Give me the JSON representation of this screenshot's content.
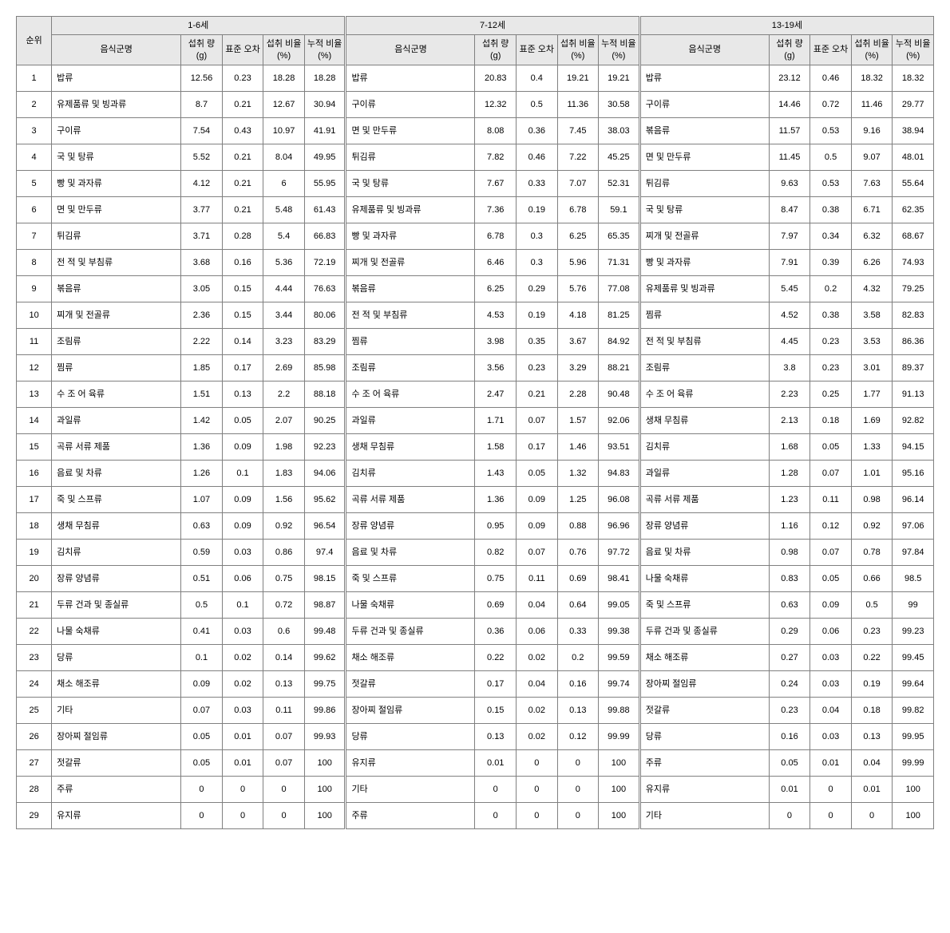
{
  "headers": {
    "rank": "순위",
    "groups": [
      "1-6세",
      "7-12세",
      "13-19세"
    ],
    "cols": {
      "name": "음식군명",
      "intake": "섭취\n량\n(g)",
      "sd": "표준\n오차",
      "ratio": "섭취\n비율\n(%)",
      "cum": "누적\n비율\n(%)"
    }
  },
  "rows": [
    {
      "rank": 1,
      "g1": {
        "name": "밥류",
        "intake": "12.56",
        "sd": "0.23",
        "ratio": "18.28",
        "cum": "18.28"
      },
      "g2": {
        "name": "밥류",
        "intake": "20.83",
        "sd": "0.4",
        "ratio": "19.21",
        "cum": "19.21"
      },
      "g3": {
        "name": "밥류",
        "intake": "23.12",
        "sd": "0.46",
        "ratio": "18.32",
        "cum": "18.32"
      }
    },
    {
      "rank": 2,
      "g1": {
        "name": "유제품류 및 빙과류",
        "intake": "8.7",
        "sd": "0.21",
        "ratio": "12.67",
        "cum": "30.94"
      },
      "g2": {
        "name": "구이류",
        "intake": "12.32",
        "sd": "0.5",
        "ratio": "11.36",
        "cum": "30.58"
      },
      "g3": {
        "name": "구이류",
        "intake": "14.46",
        "sd": "0.72",
        "ratio": "11.46",
        "cum": "29.77"
      }
    },
    {
      "rank": 3,
      "g1": {
        "name": "구이류",
        "intake": "7.54",
        "sd": "0.43",
        "ratio": "10.97",
        "cum": "41.91"
      },
      "g2": {
        "name": "면 및 만두류",
        "intake": "8.08",
        "sd": "0.36",
        "ratio": "7.45",
        "cum": "38.03"
      },
      "g3": {
        "name": "볶음류",
        "intake": "11.57",
        "sd": "0.53",
        "ratio": "9.16",
        "cum": "38.94"
      }
    },
    {
      "rank": 4,
      "g1": {
        "name": "국 및 탕류",
        "intake": "5.52",
        "sd": "0.21",
        "ratio": "8.04",
        "cum": "49.95"
      },
      "g2": {
        "name": "튀김류",
        "intake": "7.82",
        "sd": "0.46",
        "ratio": "7.22",
        "cum": "45.25"
      },
      "g3": {
        "name": "면 및 만두류",
        "intake": "11.45",
        "sd": "0.5",
        "ratio": "9.07",
        "cum": "48.01"
      }
    },
    {
      "rank": 5,
      "g1": {
        "name": "빵 및 과자류",
        "intake": "4.12",
        "sd": "0.21",
        "ratio": "6",
        "cum": "55.95"
      },
      "g2": {
        "name": "국 및 탕류",
        "intake": "7.67",
        "sd": "0.33",
        "ratio": "7.07",
        "cum": "52.31"
      },
      "g3": {
        "name": "튀김류",
        "intake": "9.63",
        "sd": "0.53",
        "ratio": "7.63",
        "cum": "55.64"
      }
    },
    {
      "rank": 6,
      "g1": {
        "name": "면 및 만두류",
        "intake": "3.77",
        "sd": "0.21",
        "ratio": "5.48",
        "cum": "61.43"
      },
      "g2": {
        "name": "유제품류 및 빙과류",
        "intake": "7.36",
        "sd": "0.19",
        "ratio": "6.78",
        "cum": "59.1"
      },
      "g3": {
        "name": "국 및 탕류",
        "intake": "8.47",
        "sd": "0.38",
        "ratio": "6.71",
        "cum": "62.35"
      }
    },
    {
      "rank": 7,
      "g1": {
        "name": "튀김류",
        "intake": "3.71",
        "sd": "0.28",
        "ratio": "5.4",
        "cum": "66.83"
      },
      "g2": {
        "name": "빵 및 과자류",
        "intake": "6.78",
        "sd": "0.3",
        "ratio": "6.25",
        "cum": "65.35"
      },
      "g3": {
        "name": "찌개 및 전골류",
        "intake": "7.97",
        "sd": "0.34",
        "ratio": "6.32",
        "cum": "68.67"
      }
    },
    {
      "rank": 8,
      "g1": {
        "name": "전 적 및 부침류",
        "intake": "3.68",
        "sd": "0.16",
        "ratio": "5.36",
        "cum": "72.19"
      },
      "g2": {
        "name": "찌개 및 전골류",
        "intake": "6.46",
        "sd": "0.3",
        "ratio": "5.96",
        "cum": "71.31"
      },
      "g3": {
        "name": "빵 및 과자류",
        "intake": "7.91",
        "sd": "0.39",
        "ratio": "6.26",
        "cum": "74.93"
      }
    },
    {
      "rank": 9,
      "g1": {
        "name": "볶음류",
        "intake": "3.05",
        "sd": "0.15",
        "ratio": "4.44",
        "cum": "76.63"
      },
      "g2": {
        "name": "볶음류",
        "intake": "6.25",
        "sd": "0.29",
        "ratio": "5.76",
        "cum": "77.08"
      },
      "g3": {
        "name": "유제품류 및 빙과류",
        "intake": "5.45",
        "sd": "0.2",
        "ratio": "4.32",
        "cum": "79.25"
      }
    },
    {
      "rank": 10,
      "g1": {
        "name": "찌개 및 전골류",
        "intake": "2.36",
        "sd": "0.15",
        "ratio": "3.44",
        "cum": "80.06"
      },
      "g2": {
        "name": "전 적 및 부침류",
        "intake": "4.53",
        "sd": "0.19",
        "ratio": "4.18",
        "cum": "81.25"
      },
      "g3": {
        "name": "찜류",
        "intake": "4.52",
        "sd": "0.38",
        "ratio": "3.58",
        "cum": "82.83"
      }
    },
    {
      "rank": 11,
      "g1": {
        "name": "조림류",
        "intake": "2.22",
        "sd": "0.14",
        "ratio": "3.23",
        "cum": "83.29"
      },
      "g2": {
        "name": "찜류",
        "intake": "3.98",
        "sd": "0.35",
        "ratio": "3.67",
        "cum": "84.92"
      },
      "g3": {
        "name": "전 적 및 부침류",
        "intake": "4.45",
        "sd": "0.23",
        "ratio": "3.53",
        "cum": "86.36"
      }
    },
    {
      "rank": 12,
      "g1": {
        "name": "찜류",
        "intake": "1.85",
        "sd": "0.17",
        "ratio": "2.69",
        "cum": "85.98"
      },
      "g2": {
        "name": "조림류",
        "intake": "3.56",
        "sd": "0.23",
        "ratio": "3.29",
        "cum": "88.21"
      },
      "g3": {
        "name": "조림류",
        "intake": "3.8",
        "sd": "0.23",
        "ratio": "3.01",
        "cum": "89.37"
      }
    },
    {
      "rank": 13,
      "g1": {
        "name": "수 조 어 육류",
        "intake": "1.51",
        "sd": "0.13",
        "ratio": "2.2",
        "cum": "88.18"
      },
      "g2": {
        "name": "수 조 어 육류",
        "intake": "2.47",
        "sd": "0.21",
        "ratio": "2.28",
        "cum": "90.48"
      },
      "g3": {
        "name": "수 조 어 육류",
        "intake": "2.23",
        "sd": "0.25",
        "ratio": "1.77",
        "cum": "91.13"
      }
    },
    {
      "rank": 14,
      "g1": {
        "name": "과일류",
        "intake": "1.42",
        "sd": "0.05",
        "ratio": "2.07",
        "cum": "90.25"
      },
      "g2": {
        "name": "과일류",
        "intake": "1.71",
        "sd": "0.07",
        "ratio": "1.57",
        "cum": "92.06"
      },
      "g3": {
        "name": "생채 무침류",
        "intake": "2.13",
        "sd": "0.18",
        "ratio": "1.69",
        "cum": "92.82"
      }
    },
    {
      "rank": 15,
      "g1": {
        "name": "곡류 서류 제품",
        "intake": "1.36",
        "sd": "0.09",
        "ratio": "1.98",
        "cum": "92.23"
      },
      "g2": {
        "name": "생채 무침류",
        "intake": "1.58",
        "sd": "0.17",
        "ratio": "1.46",
        "cum": "93.51"
      },
      "g3": {
        "name": "김치류",
        "intake": "1.68",
        "sd": "0.05",
        "ratio": "1.33",
        "cum": "94.15"
      }
    },
    {
      "rank": 16,
      "g1": {
        "name": "음료 및 차류",
        "intake": "1.26",
        "sd": "0.1",
        "ratio": "1.83",
        "cum": "94.06"
      },
      "g2": {
        "name": "김치류",
        "intake": "1.43",
        "sd": "0.05",
        "ratio": "1.32",
        "cum": "94.83"
      },
      "g3": {
        "name": "과일류",
        "intake": "1.28",
        "sd": "0.07",
        "ratio": "1.01",
        "cum": "95.16"
      }
    },
    {
      "rank": 17,
      "g1": {
        "name": "죽 및 스프류",
        "intake": "1.07",
        "sd": "0.09",
        "ratio": "1.56",
        "cum": "95.62"
      },
      "g2": {
        "name": "곡류 서류 제품",
        "intake": "1.36",
        "sd": "0.09",
        "ratio": "1.25",
        "cum": "96.08"
      },
      "g3": {
        "name": "곡류 서류 제품",
        "intake": "1.23",
        "sd": "0.11",
        "ratio": "0.98",
        "cum": "96.14"
      }
    },
    {
      "rank": 18,
      "g1": {
        "name": "생채 무침류",
        "intake": "0.63",
        "sd": "0.09",
        "ratio": "0.92",
        "cum": "96.54"
      },
      "g2": {
        "name": "장류 양념류",
        "intake": "0.95",
        "sd": "0.09",
        "ratio": "0.88",
        "cum": "96.96"
      },
      "g3": {
        "name": "장류 양념류",
        "intake": "1.16",
        "sd": "0.12",
        "ratio": "0.92",
        "cum": "97.06"
      }
    },
    {
      "rank": 19,
      "g1": {
        "name": "김치류",
        "intake": "0.59",
        "sd": "0.03",
        "ratio": "0.86",
        "cum": "97.4"
      },
      "g2": {
        "name": "음료 및 차류",
        "intake": "0.82",
        "sd": "0.07",
        "ratio": "0.76",
        "cum": "97.72"
      },
      "g3": {
        "name": "음료 및 차류",
        "intake": "0.98",
        "sd": "0.07",
        "ratio": "0.78",
        "cum": "97.84"
      }
    },
    {
      "rank": 20,
      "g1": {
        "name": "장류 양념류",
        "intake": "0.51",
        "sd": "0.06",
        "ratio": "0.75",
        "cum": "98.15"
      },
      "g2": {
        "name": "죽 및 스프류",
        "intake": "0.75",
        "sd": "0.11",
        "ratio": "0.69",
        "cum": "98.41"
      },
      "g3": {
        "name": "나물 숙채류",
        "intake": "0.83",
        "sd": "0.05",
        "ratio": "0.66",
        "cum": "98.5"
      }
    },
    {
      "rank": 21,
      "g1": {
        "name": "두류 건과 및 종실류",
        "intake": "0.5",
        "sd": "0.1",
        "ratio": "0.72",
        "cum": "98.87"
      },
      "g2": {
        "name": "나물 숙채류",
        "intake": "0.69",
        "sd": "0.04",
        "ratio": "0.64",
        "cum": "99.05"
      },
      "g3": {
        "name": "죽 및 스프류",
        "intake": "0.63",
        "sd": "0.09",
        "ratio": "0.5",
        "cum": "99"
      }
    },
    {
      "rank": 22,
      "g1": {
        "name": "나물 숙채류",
        "intake": "0.41",
        "sd": "0.03",
        "ratio": "0.6",
        "cum": "99.48"
      },
      "g2": {
        "name": "두류 건과 및 종실류",
        "intake": "0.36",
        "sd": "0.06",
        "ratio": "0.33",
        "cum": "99.38"
      },
      "g3": {
        "name": "두류 건과 및 종실류",
        "intake": "0.29",
        "sd": "0.06",
        "ratio": "0.23",
        "cum": "99.23"
      }
    },
    {
      "rank": 23,
      "g1": {
        "name": "당류",
        "intake": "0.1",
        "sd": "0.02",
        "ratio": "0.14",
        "cum": "99.62"
      },
      "g2": {
        "name": "채소 해조류",
        "intake": "0.22",
        "sd": "0.02",
        "ratio": "0.2",
        "cum": "99.59"
      },
      "g3": {
        "name": "채소 해조류",
        "intake": "0.27",
        "sd": "0.03",
        "ratio": "0.22",
        "cum": "99.45"
      }
    },
    {
      "rank": 24,
      "g1": {
        "name": "채소 해조류",
        "intake": "0.09",
        "sd": "0.02",
        "ratio": "0.13",
        "cum": "99.75"
      },
      "g2": {
        "name": "젓갈류",
        "intake": "0.17",
        "sd": "0.04",
        "ratio": "0.16",
        "cum": "99.74"
      },
      "g3": {
        "name": "장아찌 절임류",
        "intake": "0.24",
        "sd": "0.03",
        "ratio": "0.19",
        "cum": "99.64"
      }
    },
    {
      "rank": 25,
      "g1": {
        "name": "기타",
        "intake": "0.07",
        "sd": "0.03",
        "ratio": "0.11",
        "cum": "99.86"
      },
      "g2": {
        "name": "장아찌 절임류",
        "intake": "0.15",
        "sd": "0.02",
        "ratio": "0.13",
        "cum": "99.88"
      },
      "g3": {
        "name": "젓갈류",
        "intake": "0.23",
        "sd": "0.04",
        "ratio": "0.18",
        "cum": "99.82"
      }
    },
    {
      "rank": 26,
      "g1": {
        "name": "장아찌 절임류",
        "intake": "0.05",
        "sd": "0.01",
        "ratio": "0.07",
        "cum": "99.93"
      },
      "g2": {
        "name": "당류",
        "intake": "0.13",
        "sd": "0.02",
        "ratio": "0.12",
        "cum": "99.99"
      },
      "g3": {
        "name": "당류",
        "intake": "0.16",
        "sd": "0.03",
        "ratio": "0.13",
        "cum": "99.95"
      }
    },
    {
      "rank": 27,
      "g1": {
        "name": "젓갈류",
        "intake": "0.05",
        "sd": "0.01",
        "ratio": "0.07",
        "cum": "100"
      },
      "g2": {
        "name": "유지류",
        "intake": "0.01",
        "sd": "0",
        "ratio": "0",
        "cum": "100"
      },
      "g3": {
        "name": "주류",
        "intake": "0.05",
        "sd": "0.01",
        "ratio": "0.04",
        "cum": "99.99"
      }
    },
    {
      "rank": 28,
      "g1": {
        "name": "주류",
        "intake": "0",
        "sd": "0",
        "ratio": "0",
        "cum": "100"
      },
      "g2": {
        "name": "기타",
        "intake": "0",
        "sd": "0",
        "ratio": "0",
        "cum": "100"
      },
      "g3": {
        "name": "유지류",
        "intake": "0.01",
        "sd": "0",
        "ratio": "0.01",
        "cum": "100"
      }
    },
    {
      "rank": 29,
      "g1": {
        "name": "유지류",
        "intake": "0",
        "sd": "0",
        "ratio": "0",
        "cum": "100"
      },
      "g2": {
        "name": "주류",
        "intake": "0",
        "sd": "0",
        "ratio": "0",
        "cum": "100"
      },
      "g3": {
        "name": "기타",
        "intake": "0",
        "sd": "0",
        "ratio": "0",
        "cum": "100"
      }
    }
  ],
  "style": {
    "header_bg": "#e8e8e8",
    "border_color": "#808080",
    "font_family": "Malgun Gothic",
    "body_font_size": 11
  }
}
